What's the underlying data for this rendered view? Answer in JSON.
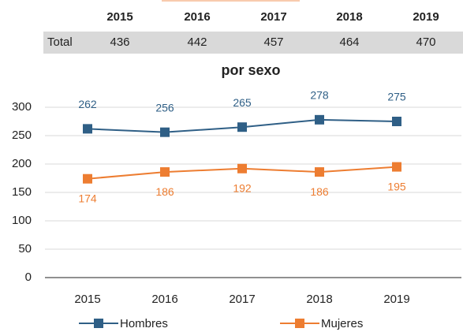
{
  "table": {
    "header": [
      "2015",
      "2016",
      "2017",
      "2018",
      "2019"
    ],
    "rows": [
      [
        "Total",
        "436",
        "442",
        "457",
        "464",
        "470"
      ]
    ]
  },
  "chart_data": {
    "type": "line",
    "title": "por sexo",
    "categories": [
      "2015",
      "2016",
      "2017",
      "2018",
      "2019"
    ],
    "series": [
      {
        "name": "Hombres",
        "color": "#2f5f86",
        "values": [
          262,
          256,
          265,
          278,
          275
        ]
      },
      {
        "name": "Mujeres",
        "color": "#ed7d31",
        "values": [
          174,
          186,
          192,
          186,
          195
        ]
      }
    ],
    "ylim": [
      0,
      300
    ],
    "yticks": [
      0,
      50,
      100,
      150,
      200,
      250,
      300
    ],
    "grid": true,
    "legend": "bottom"
  }
}
